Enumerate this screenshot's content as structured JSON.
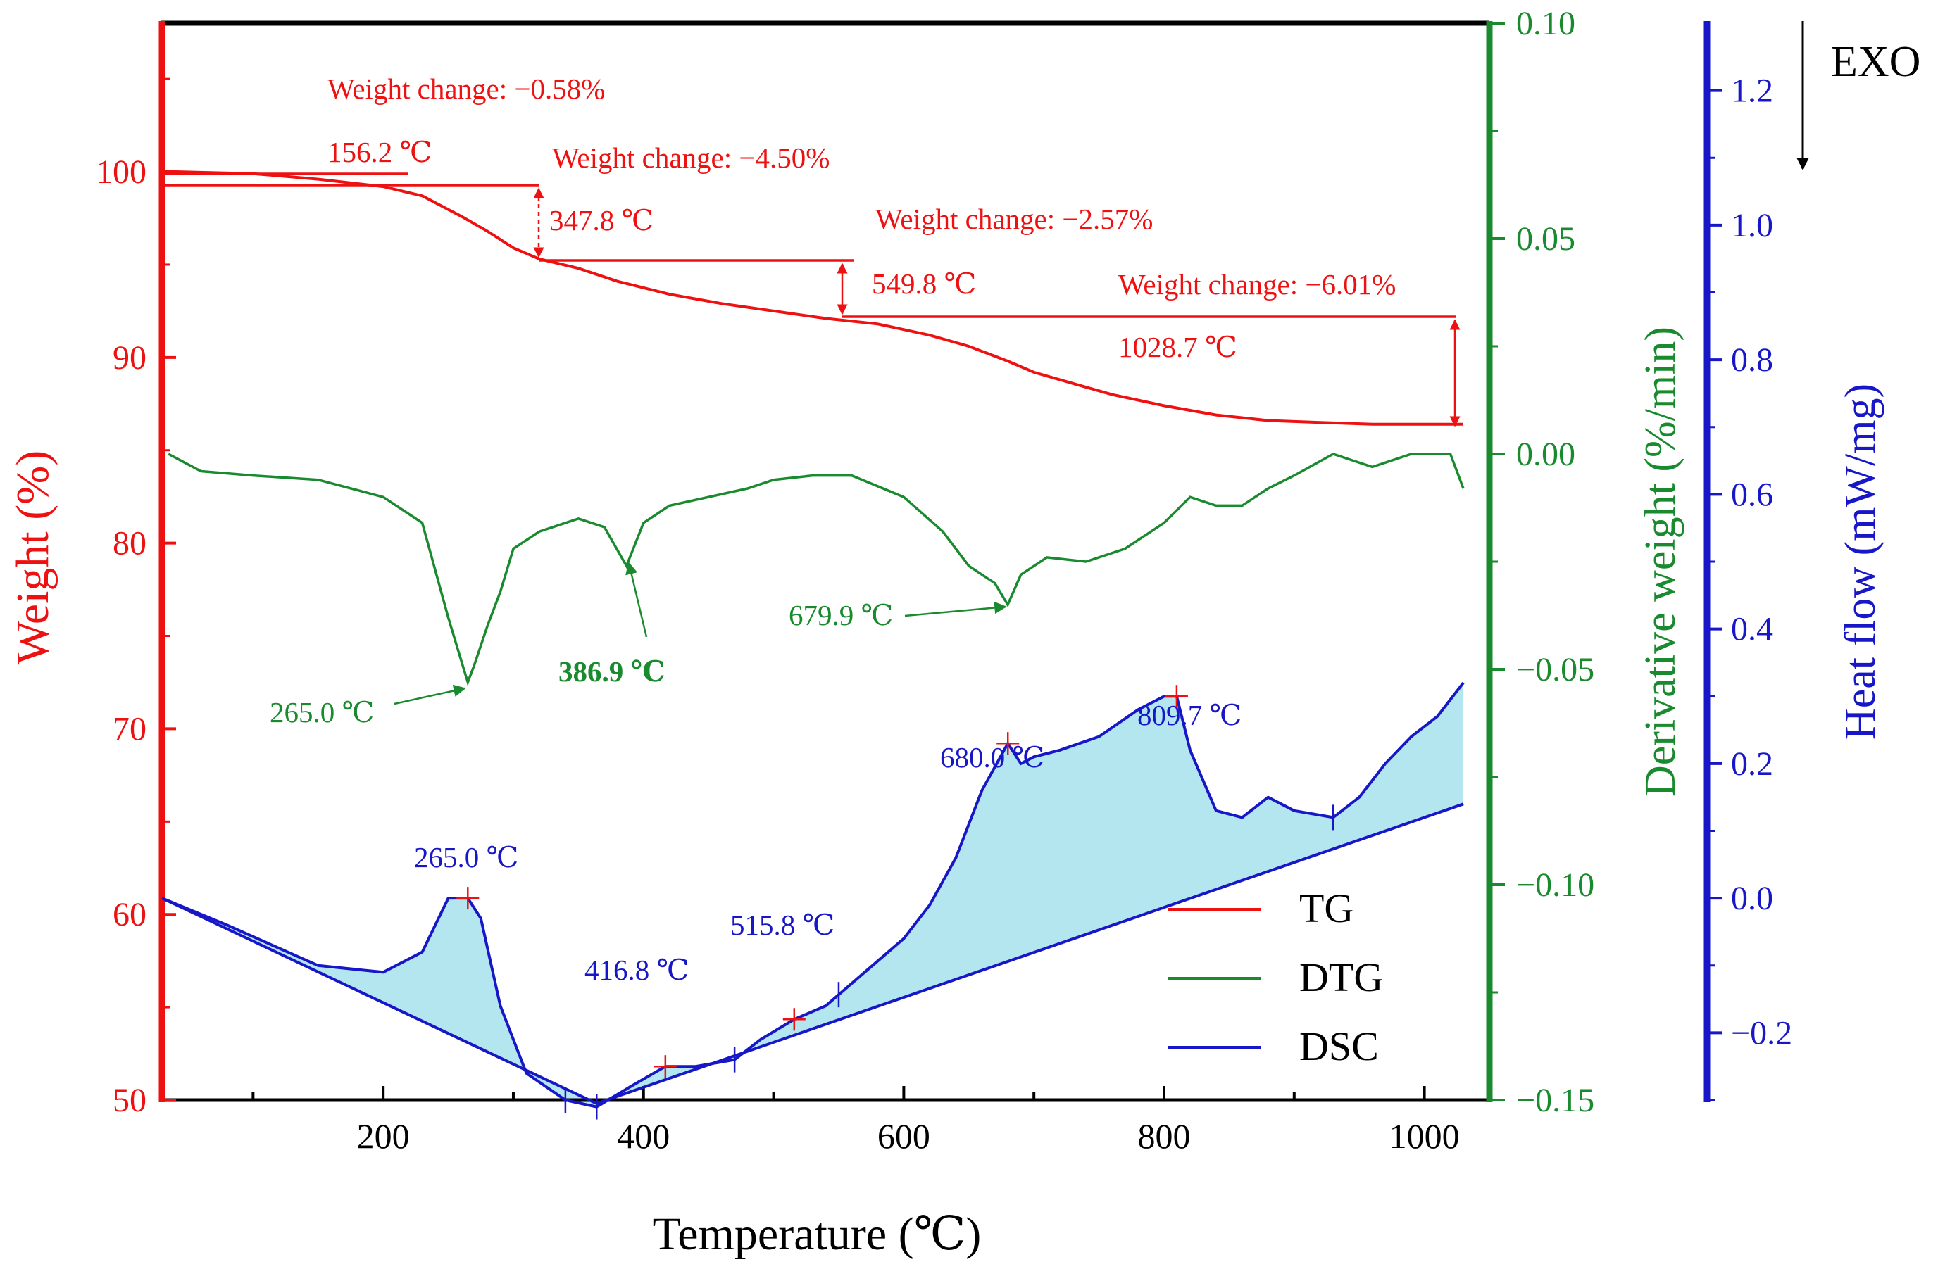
{
  "colors": {
    "tg": "#ee1111",
    "dtg": "#1a8a2e",
    "dsc": "#1717c8",
    "dsc_fill": "#b4e6f0",
    "frame": "#000000"
  },
  "chart_data": {
    "type": "line",
    "title": "",
    "xlabel": "Temperature (℃)",
    "xlim": [
      30,
      1050
    ],
    "x_ticks": [
      200,
      400,
      600,
      800,
      1000
    ],
    "axes": {
      "tg": {
        "label": "Weight (%)",
        "ylim": [
          50,
          108
        ],
        "ticks": [
          50,
          60,
          70,
          80,
          90,
          100
        ],
        "tick_labels": [
          "50",
          "60",
          "70",
          "80",
          "90",
          "100"
        ]
      },
      "dtg": {
        "label": "Derivative weight (%/min)",
        "ylim": [
          -0.15,
          0.1
        ],
        "ticks": [
          -0.15,
          -0.1,
          -0.05,
          0.0,
          0.05,
          0.1
        ],
        "tick_labels": [
          "−0.15",
          "−0.10",
          "−0.05",
          "0.00",
          "0.05",
          "0.10"
        ]
      },
      "dsc": {
        "label": "Heat flow (mW/mg)",
        "ylim": [
          -0.3,
          1.3
        ],
        "ticks": [
          -0.2,
          0.0,
          0.2,
          0.4,
          0.6,
          0.8,
          1.0,
          1.2
        ],
        "tick_labels": [
          "−0.2",
          "0.0",
          "0.2",
          "0.4",
          "0.6",
          "0.8",
          "1.0",
          "1.2"
        ]
      }
    },
    "exo_label": "EXO",
    "legend": {
      "placement": "bottom-right",
      "entries": [
        {
          "name": "TG",
          "color": "#ee1111"
        },
        {
          "name": "DTG",
          "color": "#1a8a2e"
        },
        {
          "name": "DSC",
          "color": "#1717c8"
        }
      ]
    },
    "series": [
      {
        "name": "TG",
        "axis": "tg",
        "x": [
          40,
          100,
          150,
          200,
          230,
          260,
          280,
          300,
          320,
          350,
          380,
          420,
          460,
          500,
          540,
          580,
          620,
          650,
          680,
          700,
          730,
          760,
          800,
          840,
          880,
          920,
          960,
          1000,
          1030
        ],
        "y": [
          100,
          99.9,
          99.6,
          99.2,
          98.7,
          97.6,
          96.8,
          95.9,
          95.3,
          94.8,
          94.1,
          93.4,
          92.9,
          92.5,
          92.1,
          91.8,
          91.2,
          90.6,
          89.8,
          89.2,
          88.6,
          88.0,
          87.4,
          86.9,
          86.6,
          86.5,
          86.4,
          86.4,
          86.4
        ]
      },
      {
        "name": "DTG",
        "axis": "dtg",
        "x": [
          35,
          60,
          100,
          150,
          200,
          230,
          250,
          260,
          265,
          270,
          280,
          290,
          300,
          320,
          350,
          370,
          386.9,
          400,
          420,
          450,
          480,
          500,
          530,
          560,
          600,
          630,
          650,
          670,
          679.9,
          690,
          710,
          740,
          770,
          800,
          820,
          840,
          860,
          880,
          900,
          930,
          960,
          990,
          1020,
          1030
        ],
        "y": [
          0.0,
          -0.004,
          -0.005,
          -0.006,
          -0.01,
          -0.016,
          -0.038,
          -0.048,
          -0.053,
          -0.049,
          -0.04,
          -0.032,
          -0.022,
          -0.018,
          -0.015,
          -0.017,
          -0.026,
          -0.016,
          -0.012,
          -0.01,
          -0.008,
          -0.006,
          -0.005,
          -0.005,
          -0.01,
          -0.018,
          -0.026,
          -0.03,
          -0.035,
          -0.028,
          -0.024,
          -0.025,
          -0.022,
          -0.016,
          -0.01,
          -0.012,
          -0.012,
          -0.008,
          -0.005,
          0.0,
          -0.003,
          0.0,
          0.0,
          -0.008
        ]
      },
      {
        "name": "DSC",
        "axis": "dsc",
        "x": [
          30,
          80,
          150,
          200,
          230,
          250,
          265,
          275,
          290,
          310,
          340,
          364,
          390,
          416.8,
          440,
          470,
          490,
          515.8,
          540,
          570,
          600,
          620,
          640,
          660,
          680,
          690,
          700,
          720,
          750,
          780,
          800,
          809.7,
          820,
          840,
          860,
          880,
          900,
          930,
          950,
          970,
          990,
          1010,
          1030
        ],
        "y": [
          0.0,
          -0.04,
          -0.1,
          -0.11,
          -0.08,
          0.0,
          0.0,
          -0.03,
          -0.16,
          -0.26,
          -0.3,
          -0.31,
          -0.28,
          -0.25,
          -0.25,
          -0.24,
          -0.21,
          -0.18,
          -0.16,
          -0.11,
          -0.06,
          -0.01,
          0.06,
          0.16,
          0.23,
          0.2,
          0.21,
          0.22,
          0.24,
          0.28,
          0.3,
          0.3,
          0.22,
          0.13,
          0.12,
          0.15,
          0.13,
          0.12,
          0.15,
          0.2,
          0.24,
          0.27,
          0.32
        ]
      },
      {
        "name": "DSC baseline",
        "axis": "dsc",
        "x": [
          30,
          364,
          1030
        ],
        "y": [
          0.0,
          -0.305,
          0.14
        ]
      }
    ],
    "annotations": {
      "tg_weight_changes": [
        {
          "label": "Weight change: −0.58%",
          "temp_label": "156.2 ℃",
          "x": 156.2
        },
        {
          "label": "Weight change: −4.50%",
          "temp_label": "347.8 ℃",
          "x": 347.8
        },
        {
          "label": "Weight change: −2.57%",
          "temp_label": "549.8 ℃",
          "x": 549.8
        },
        {
          "label": "Weight change: −6.01%",
          "temp_label": "1028.7 ℃",
          "x": 1028.7
        }
      ],
      "dtg_peaks": [
        {
          "label": "265.0 ℃",
          "x": 265.0
        },
        {
          "label": "386.9 ℃",
          "x": 386.9
        },
        {
          "label": "679.9 ℃",
          "x": 679.9
        }
      ],
      "dsc_peaks": [
        {
          "label": "265.0 ℃",
          "x": 265.0
        },
        {
          "label": "416.8 ℃",
          "x": 416.8
        },
        {
          "label": "515.8 ℃",
          "x": 515.8
        },
        {
          "label": "680.0 ℃",
          "x": 680.0
        },
        {
          "label": "809.7 ℃",
          "x": 809.7
        }
      ]
    }
  }
}
